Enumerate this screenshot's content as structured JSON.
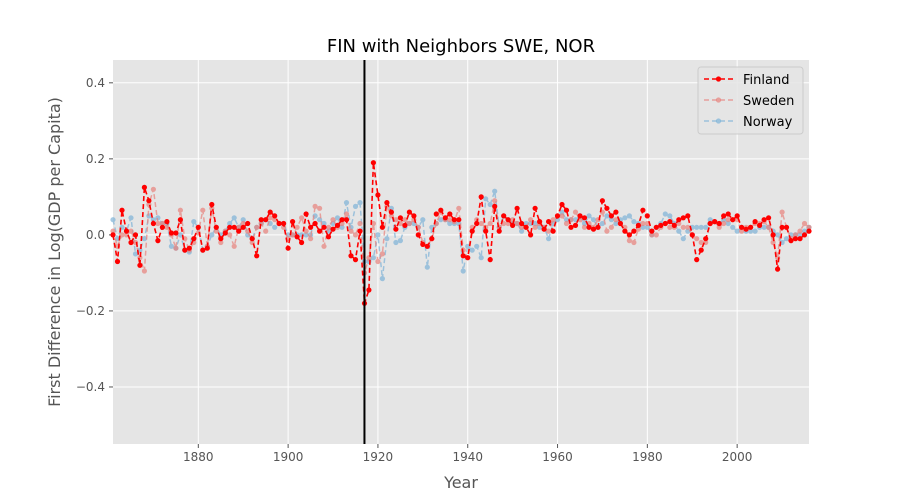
{
  "chart_data": {
    "type": "line",
    "title": "FIN with Neighbors SWE, NOR",
    "xlabel": "Year",
    "ylabel": "First Difference in Log(GDP per Capita)",
    "xlim": [
      1861,
      2016
    ],
    "ylim": [
      -0.55,
      0.46
    ],
    "x_ticks": [
      1880,
      1900,
      1920,
      1940,
      1960,
      1980,
      2000
    ],
    "y_ticks": [
      -0.4,
      -0.2,
      0.0,
      0.2,
      0.4
    ],
    "x_tick_labels": [
      "1880",
      "1900",
      "1920",
      "1940",
      "1960",
      "1980",
      "2000"
    ],
    "y_tick_labels": [
      "−0.4",
      "−0.2",
      "0.0",
      "0.2",
      "0.4"
    ],
    "grid": true,
    "legend_position": "top-right",
    "vertical_line": {
      "x": 1917,
      "color": "#000000"
    },
    "x": [
      1861,
      1862,
      1863,
      1864,
      1865,
      1866,
      1867,
      1868,
      1869,
      1870,
      1871,
      1872,
      1873,
      1874,
      1875,
      1876,
      1877,
      1878,
      1879,
      1880,
      1881,
      1882,
      1883,
      1884,
      1885,
      1886,
      1887,
      1888,
      1889,
      1890,
      1891,
      1892,
      1893,
      1894,
      1895,
      1896,
      1897,
      1898,
      1899,
      1900,
      1901,
      1902,
      1903,
      1904,
      1905,
      1906,
      1907,
      1908,
      1909,
      1910,
      1911,
      1912,
      1913,
      1914,
      1915,
      1916,
      1917,
      1918,
      1919,
      1920,
      1921,
      1922,
      1923,
      1924,
      1925,
      1926,
      1927,
      1928,
      1929,
      1930,
      1931,
      1932,
      1933,
      1934,
      1935,
      1936,
      1937,
      1938,
      1939,
      1940,
      1941,
      1942,
      1943,
      1944,
      1945,
      1946,
      1947,
      1948,
      1949,
      1950,
      1951,
      1952,
      1953,
      1954,
      1955,
      1956,
      1957,
      1958,
      1959,
      1960,
      1961,
      1962,
      1963,
      1964,
      1965,
      1966,
      1967,
      1968,
      1969,
      1970,
      1971,
      1972,
      1973,
      1974,
      1975,
      1976,
      1977,
      1978,
      1979,
      1980,
      1981,
      1982,
      1983,
      1984,
      1985,
      1986,
      1987,
      1988,
      1989,
      1990,
      1991,
      1992,
      1993,
      1994,
      1995,
      1996,
      1997,
      1998,
      1999,
      2000,
      2001,
      2002,
      2003,
      2004,
      2005,
      2006,
      2007,
      2008,
      2009,
      2010,
      2011,
      2012,
      2013,
      2014,
      2015,
      2016
    ],
    "series": [
      {
        "name": "Finland",
        "color": "#ff0000",
        "values": [
          0.0,
          -0.07,
          0.065,
          0.01,
          -0.02,
          0.0,
          -0.08,
          0.125,
          0.09,
          0.03,
          -0.015,
          0.02,
          0.035,
          0.005,
          0.005,
          0.04,
          -0.04,
          -0.035,
          -0.01,
          0.02,
          -0.04,
          -0.035,
          0.08,
          0.02,
          -0.01,
          0.005,
          0.02,
          0.02,
          0.01,
          0.02,
          0.03,
          -0.01,
          -0.055,
          0.04,
          0.04,
          0.06,
          0.05,
          0.03,
          0.03,
          -0.035,
          0.035,
          -0.005,
          -0.02,
          0.055,
          0.02,
          0.03,
          0.01,
          0.02,
          -0.005,
          0.015,
          0.025,
          0.04,
          0.04,
          -0.055,
          -0.065,
          0.01,
          -0.18,
          -0.145,
          0.19,
          0.105,
          0.02,
          0.085,
          0.06,
          0.015,
          0.045,
          0.025,
          0.06,
          0.05,
          0.0,
          -0.025,
          -0.03,
          -0.01,
          0.055,
          0.065,
          0.045,
          0.055,
          0.04,
          0.04,
          -0.055,
          -0.06,
          0.01,
          0.03,
          0.1,
          0.01,
          -0.065,
          0.075,
          0.01,
          0.05,
          0.04,
          0.025,
          0.07,
          0.03,
          0.02,
          0.0,
          0.07,
          0.035,
          0.015,
          0.035,
          0.01,
          0.05,
          0.08,
          0.065,
          0.02,
          0.025,
          0.05,
          0.045,
          0.02,
          0.015,
          0.02,
          0.09,
          0.07,
          0.05,
          0.06,
          0.03,
          0.01,
          0.0,
          0.01,
          0.025,
          0.065,
          0.05,
          0.01,
          0.02,
          0.025,
          0.03,
          0.035,
          0.025,
          0.04,
          0.045,
          0.05,
          0.0,
          -0.065,
          -0.04,
          -0.01,
          0.03,
          0.035,
          0.03,
          0.05,
          0.055,
          0.04,
          0.05,
          0.02,
          0.015,
          0.02,
          0.035,
          0.025,
          0.04,
          0.045,
          0.0,
          -0.09,
          0.02,
          0.02,
          -0.015,
          -0.01,
          -0.01,
          0.0,
          0.01
        ]
      },
      {
        "name": "Sweden",
        "color": "#e8827c",
        "values": [
          0.01,
          -0.03,
          0.0,
          0.0,
          0.01,
          -0.02,
          -0.06,
          -0.095,
          0.08,
          0.12,
          0.03,
          0.03,
          0.02,
          0.0,
          -0.035,
          0.065,
          -0.01,
          -0.04,
          -0.02,
          0.005,
          0.065,
          -0.03,
          0.07,
          0.01,
          -0.02,
          0.01,
          0.0,
          -0.03,
          0.02,
          0.03,
          0.01,
          -0.02,
          0.02,
          0.03,
          0.01,
          0.045,
          0.04,
          0.03,
          0.02,
          -0.01,
          0.0,
          0.02,
          0.045,
          0.01,
          -0.01,
          0.075,
          0.07,
          -0.03,
          0.02,
          0.04,
          0.02,
          0.03,
          0.055,
          0.01,
          0.0,
          0.03,
          -0.1,
          -0.06,
          0.03,
          -0.07,
          -0.05,
          0.075,
          0.05,
          0.04,
          0.03,
          0.04,
          0.03,
          0.04,
          0.02,
          -0.02,
          -0.03,
          -0.01,
          0.03,
          0.06,
          0.04,
          0.04,
          0.035,
          0.07,
          -0.04,
          -0.06,
          0.02,
          0.04,
          0.03,
          0.02,
          0.03,
          0.09,
          0.02,
          0.03,
          0.03,
          0.04,
          0.03,
          0.02,
          0.02,
          0.04,
          0.02,
          0.03,
          0.02,
          0.01,
          0.04,
          0.05,
          0.05,
          0.03,
          0.04,
          0.06,
          0.04,
          0.02,
          0.03,
          0.02,
          0.04,
          0.06,
          0.01,
          0.02,
          0.04,
          0.03,
          0.02,
          -0.015,
          -0.02,
          0.015,
          0.03,
          0.03,
          0.0,
          0.0,
          0.02,
          0.03,
          0.02,
          0.02,
          0.03,
          0.02,
          0.02,
          0.0,
          -0.01,
          -0.02,
          -0.02,
          0.03,
          0.035,
          0.02,
          0.03,
          0.04,
          0.04,
          0.04,
          0.01,
          0.02,
          0.02,
          0.03,
          0.03,
          0.035,
          0.02,
          -0.02,
          -0.06,
          0.06,
          0.02,
          -0.01,
          0.0,
          0.01,
          0.03,
          0.02
        ]
      },
      {
        "name": "Norway",
        "color": "#7eb3d8",
        "values": [
          0.04,
          -0.01,
          0.02,
          0.01,
          0.045,
          -0.05,
          -0.04,
          -0.01,
          0.05,
          0.04,
          0.045,
          0.03,
          0.03,
          -0.03,
          -0.035,
          0.0,
          -0.04,
          -0.045,
          0.035,
          0.02,
          -0.04,
          -0.03,
          0.0,
          0.02,
          0.0,
          0.01,
          0.03,
          0.045,
          0.02,
          0.04,
          0.0,
          -0.01,
          0.02,
          0.03,
          0.04,
          0.03,
          0.02,
          0.03,
          0.03,
          0.0,
          0.0,
          0.0,
          0.0,
          0.0,
          0.0,
          0.05,
          0.04,
          0.03,
          0.01,
          0.03,
          0.045,
          0.02,
          0.085,
          0.02,
          0.075,
          0.085,
          -0.07,
          -0.07,
          -0.06,
          0.0,
          -0.115,
          -0.01,
          0.07,
          -0.02,
          -0.015,
          0.02,
          0.03,
          0.03,
          0.02,
          0.04,
          -0.085,
          0.02,
          0.03,
          0.04,
          0.04,
          0.03,
          0.03,
          0.03,
          -0.095,
          -0.03,
          -0.04,
          -0.03,
          -0.06,
          0.095,
          0.08,
          0.115,
          0.02,
          0.05,
          0.04,
          0.03,
          0.03,
          0.01,
          0.03,
          0.03,
          0.03,
          0.02,
          0.02,
          -0.01,
          0.03,
          0.04,
          0.06,
          0.04,
          0.04,
          0.04,
          0.05,
          0.03,
          0.05,
          0.04,
          0.02,
          0.03,
          0.05,
          0.04,
          0.03,
          0.04,
          0.045,
          0.05,
          0.035,
          0.03,
          0.02,
          0.02,
          0.0,
          0.02,
          0.03,
          0.055,
          0.05,
          0.03,
          0.01,
          -0.01,
          0.01,
          0.02,
          0.02,
          0.02,
          0.02,
          0.04,
          0.035,
          0.03,
          0.04,
          0.03,
          0.02,
          0.01,
          0.02,
          0.01,
          0.01,
          0.01,
          0.02,
          0.02,
          0.02,
          0.01,
          0.0,
          -0.02,
          -0.01,
          0.0,
          0.0,
          0.0,
          0.01,
          0.02
        ]
      }
    ]
  }
}
